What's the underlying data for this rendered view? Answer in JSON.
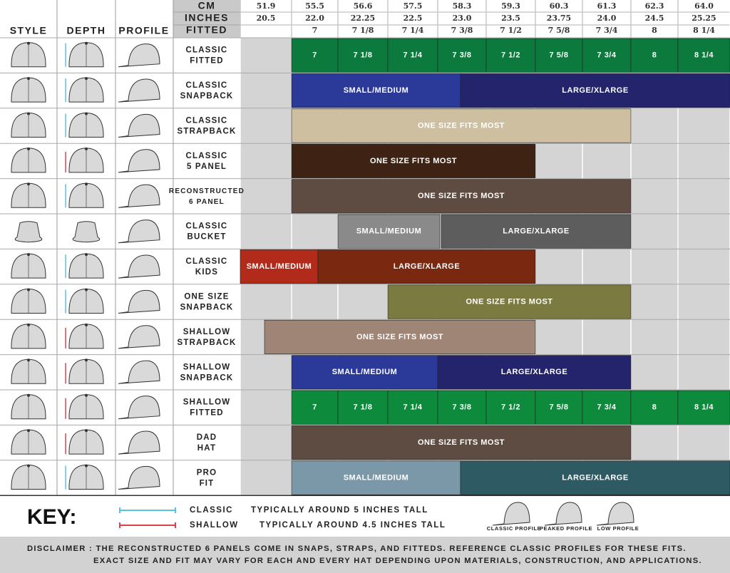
{
  "header": {
    "column_titles": [
      "STYLE",
      "DEPTH",
      "PROFILE"
    ],
    "row_labels": [
      "CM",
      "INCHES",
      "FITTED"
    ],
    "cm": [
      "51.9",
      "55.5",
      "56.6",
      "57.5",
      "58.3",
      "59.3",
      "60.3",
      "61.3",
      "62.3",
      "64.0"
    ],
    "inches": [
      "20.5",
      "22.0",
      "22.25",
      "22.5",
      "23.0",
      "23.5",
      "23.75",
      "24.0",
      "24.5",
      "25.25"
    ],
    "fitted": [
      null,
      "7",
      "7 1/8",
      "7 1/4",
      "7 3/8",
      "7 1/2",
      "7 5/8",
      "7 3/4",
      "8",
      "8 1/4"
    ]
  },
  "rows": [
    {
      "name": [
        "CLASSIC",
        "FITTED"
      ],
      "sizes": [
        {
          "label": "7",
          "color": "#0b7a3c"
        },
        {
          "label": "7 1/8",
          "color": "#0b7a3c"
        },
        {
          "label": "7 1/4",
          "color": "#0b7a3c"
        },
        {
          "label": "7 3/8",
          "color": "#0b7a3c"
        },
        {
          "label": "7 1/2",
          "color": "#0b7a3c"
        },
        {
          "label": "7 5/8",
          "color": "#0b7a3c"
        },
        {
          "label": "7 3/4",
          "color": "#0b7a3c"
        },
        {
          "label": "8",
          "color": "#0b7a3c"
        },
        {
          "label": "8 1/4",
          "color": "#0b7a3c"
        }
      ]
    },
    {
      "name": [
        "CLASSIC",
        "SNAPBACK"
      ],
      "sizes": [
        {
          "label": "SMALL/MEDIUM",
          "color": "#2b3a98"
        },
        {
          "label": "LARGE/XLARGE",
          "color": "#23246c"
        }
      ]
    },
    {
      "name": [
        "CLASSIC",
        "STRAPBACK"
      ],
      "sizes": [
        {
          "label": "ONE SIZE FITS MOST",
          "color": "#cdbf9f"
        }
      ]
    },
    {
      "name": [
        "CLASSIC",
        "5 PANEL"
      ],
      "sizes": [
        {
          "label": "ONE SIZE FITS MOST",
          "color": "#3e2314"
        }
      ]
    },
    {
      "name": [
        "RECONSTRUCTED",
        "6 PANEL"
      ],
      "sizes": [
        {
          "label": "ONE SIZE FITS MOST",
          "color": "#5e4c43"
        }
      ]
    },
    {
      "name": [
        "CLASSIC",
        "BUCKET"
      ],
      "sizes": [
        {
          "label": "SMALL/MEDIUM",
          "color": "#8a8a8a"
        },
        {
          "label": "LARGE/XLARGE",
          "color": "#5d5d5d"
        }
      ]
    },
    {
      "name": [
        "CLASSIC",
        "KIDS"
      ],
      "sizes": [
        {
          "label": "SMALL/MEDIUM",
          "color": "#b22b1a"
        },
        {
          "label": "LARGE/XLARGE",
          "color": "#7a2810"
        }
      ]
    },
    {
      "name": [
        "ONE SIZE",
        "SNAPBACK"
      ],
      "sizes": [
        {
          "label": "ONE SIZE FITS MOST",
          "color": "#7a7a41"
        }
      ]
    },
    {
      "name": [
        "SHALLOW",
        "STRAPBACK"
      ],
      "sizes": [
        {
          "label": "ONE SIZE FITS MOST",
          "color": "#9e8576"
        }
      ]
    },
    {
      "name": [
        "SHALLOW",
        "SNAPBACK"
      ],
      "sizes": [
        {
          "label": "SMALL/MEDIUM",
          "color": "#2b3a98"
        },
        {
          "label": "LARGE/XLARGE",
          "color": "#23246c"
        }
      ]
    },
    {
      "name": [
        "SHALLOW",
        "FITTED"
      ],
      "sizes": [
        {
          "label": "7",
          "color": "#0e8a3c"
        },
        {
          "label": "7 1/8",
          "color": "#0e8a3c"
        },
        {
          "label": "7 1/4",
          "color": "#0e8a3c"
        },
        {
          "label": "7 3/8",
          "color": "#0e8a3c"
        },
        {
          "label": "7 1/2",
          "color": "#0e8a3c"
        },
        {
          "label": "7 5/8",
          "color": "#0e8a3c"
        },
        {
          "label": "7 3/4",
          "color": "#0e8a3c"
        },
        {
          "label": "8",
          "color": "#0e8a3c"
        },
        {
          "label": "8 1/4",
          "color": "#0e8a3c"
        }
      ]
    },
    {
      "name": [
        "DAD",
        "HAT"
      ],
      "sizes": [
        {
          "label": "ONE SIZE FITS MOST",
          "color": "#5e4c43"
        }
      ]
    },
    {
      "name": [
        "PRO",
        "FIT"
      ],
      "sizes": [
        {
          "label": "SMALL/MEDIUM",
          "color": "#7a98a8"
        },
        {
          "label": "LARGE/XLARGE",
          "color": "#2e5a64"
        }
      ]
    }
  ],
  "key": {
    "title": "KEY:",
    "items": [
      {
        "name": "CLASSIC",
        "description": "TYPICALLY AROUND 5 INCHES TALL",
        "color": "#5bc0e8"
      },
      {
        "name": "SHALLOW",
        "description": "TYPICALLY AROUND 4.5 INCHES TALL",
        "color": "#e0404a"
      }
    ],
    "profiles": [
      "CLASSIC PROFILE",
      "PEAKED PROFILE",
      "LOW PROFILE"
    ]
  },
  "disclaimer": [
    "DISCLAIMER : THE RECONSTRUCTED 6 PANELS COME IN SNAPS, STRAPS, AND FITTEDS. REFERENCE CLASSIC PROFILES FOR THESE FITS.",
    "EXACT SIZE AND FIT MAY VARY FOR EACH AND EVERY HAT DEPENDING UPON MATERIALS, CONSTRUCTION, AND APPLICATIONS."
  ]
}
